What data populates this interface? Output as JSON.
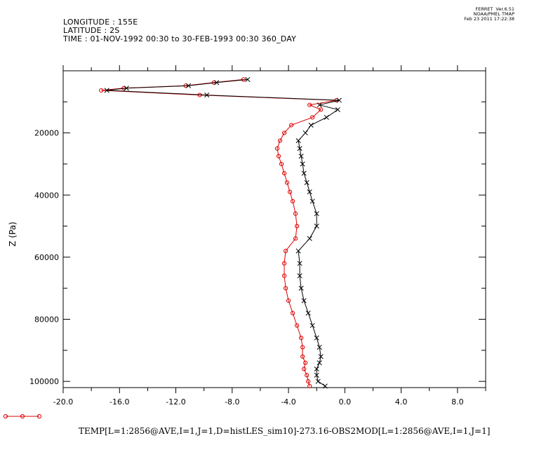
{
  "header": {
    "longitude": "LONGITUDE : 155E",
    "latitude": "LATITUDE : 2S",
    "time": "TIME : 01-NOV-1992 00:30 to 30-FEB-1993 00:30 360_DAY",
    "ferret_version": "FERRET  Ver.6.51",
    "ferret_org": "NOAA/PMEL TMAP",
    "ferret_date": "Feb 23 2011 17:22:38"
  },
  "bottom_title": "TEMP[L=1:2856@AVE,I=1,J=1,D=histLES_sim10]-273.16-OBS2MOD[L=1:2856@AVE,I=1,J=1]",
  "colors": {
    "series_red": "#dd0000",
    "series_black": "#000000",
    "axis": "#000000"
  },
  "chart_data": {
    "type": "line",
    "title": "",
    "xlabel": "",
    "ylabel": "Z (Pa)",
    "xlim": [
      -20,
      10
    ],
    "ylim": [
      102000,
      0
    ],
    "y_axis_inverted": true,
    "xticks": [
      -20,
      -16,
      -12,
      -8,
      -4,
      0,
      4,
      8
    ],
    "xtick_labels": [
      "-20.0",
      "-16.0",
      "-12.0",
      "-8.0",
      "-4.0",
      "0.0",
      "4.0",
      "8.0"
    ],
    "yticks": [
      20000,
      40000,
      60000,
      80000,
      100000
    ],
    "ytick_labels": [
      "20000",
      "40000",
      "60000",
      "80000",
      "100000"
    ],
    "grid": false,
    "series": [
      {
        "color": "#dd0000",
        "marker": "circle",
        "points": [
          [
            -7.2,
            2800
          ],
          [
            -9.3,
            3800
          ],
          [
            -11.3,
            4800
          ],
          [
            -15.7,
            5600
          ],
          [
            -17.3,
            6300
          ],
          [
            -10.3,
            7800
          ],
          [
            -0.6,
            9500
          ],
          [
            -2.5,
            11000
          ],
          [
            -1.7,
            12500
          ],
          [
            -2.3,
            15000
          ],
          [
            -3.8,
            17500
          ],
          [
            -4.3,
            20000
          ],
          [
            -4.6,
            22500
          ],
          [
            -4.8,
            25000
          ],
          [
            -4.7,
            27500
          ],
          [
            -4.5,
            30000
          ],
          [
            -4.3,
            33000
          ],
          [
            -4.1,
            36000
          ],
          [
            -3.9,
            39000
          ],
          [
            -3.7,
            42000
          ],
          [
            -3.5,
            46000
          ],
          [
            -3.4,
            50000
          ],
          [
            -3.5,
            54000
          ],
          [
            -4.2,
            58000
          ],
          [
            -4.3,
            62000
          ],
          [
            -4.3,
            66000
          ],
          [
            -4.2,
            70000
          ],
          [
            -4.0,
            74000
          ],
          [
            -3.7,
            78000
          ],
          [
            -3.4,
            82000
          ],
          [
            -3.1,
            86000
          ],
          [
            -3.0,
            89000
          ],
          [
            -3.0,
            92000
          ],
          [
            -2.8,
            94000
          ],
          [
            -2.9,
            96000
          ],
          [
            -2.7,
            98000
          ],
          [
            -2.6,
            100000
          ],
          [
            -2.5,
            101500
          ]
        ]
      },
      {
        "color": "#000000",
        "marker": "x",
        "points": [
          [
            -6.9,
            2800
          ],
          [
            -9.1,
            3800
          ],
          [
            -11.1,
            4800
          ],
          [
            -15.5,
            5600
          ],
          [
            -16.9,
            6300
          ],
          [
            -9.8,
            7800
          ],
          [
            -0.4,
            9500
          ],
          [
            -1.8,
            11000
          ],
          [
            -0.5,
            12500
          ],
          [
            -1.3,
            15000
          ],
          [
            -2.4,
            17500
          ],
          [
            -2.8,
            20000
          ],
          [
            -3.3,
            22500
          ],
          [
            -3.2,
            25000
          ],
          [
            -3.1,
            27500
          ],
          [
            -3.0,
            30000
          ],
          [
            -2.9,
            33000
          ],
          [
            -2.7,
            36000
          ],
          [
            -2.5,
            39000
          ],
          [
            -2.3,
            42000
          ],
          [
            -2.0,
            46000
          ],
          [
            -2.0,
            50000
          ],
          [
            -2.5,
            54000
          ],
          [
            -3.3,
            58000
          ],
          [
            -3.2,
            62000
          ],
          [
            -3.2,
            66000
          ],
          [
            -3.1,
            70000
          ],
          [
            -2.9,
            74000
          ],
          [
            -2.6,
            78000
          ],
          [
            -2.3,
            82000
          ],
          [
            -2.0,
            86000
          ],
          [
            -1.8,
            89000
          ],
          [
            -1.7,
            92000
          ],
          [
            -1.8,
            94000
          ],
          [
            -2.0,
            96000
          ],
          [
            -2.0,
            98000
          ],
          [
            -1.9,
            100000
          ],
          [
            -1.4,
            101500
          ]
        ]
      }
    ]
  }
}
